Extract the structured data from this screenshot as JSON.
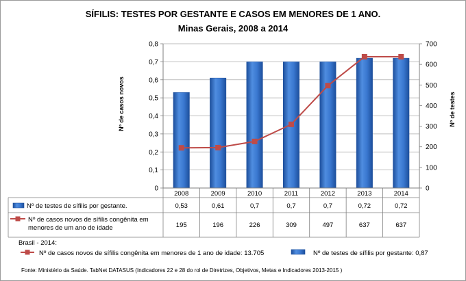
{
  "chart_data": {
    "type": "bar+line",
    "title": "SÍFILIS: TESTES POR GESTANTE E CASOS EM MENORES DE 1 ANO.",
    "subtitle": "Minas Gerais, 2008 a 2014",
    "categories": [
      "2008",
      "2009",
      "2010",
      "2011",
      "2012",
      "2013",
      "2014"
    ],
    "left_axis": {
      "label": "Nº de casos  novos",
      "ylim": [
        0,
        0.8
      ],
      "ticks": [
        "0",
        "0,1",
        "0,2",
        "0,3",
        "0,4",
        "0,5",
        "0,6",
        "0,7",
        "0,8"
      ]
    },
    "right_axis": {
      "label": "Nº de testes",
      "ylim": [
        0,
        700
      ],
      "ticks": [
        "0",
        "100",
        "200",
        "300",
        "400",
        "500",
        "600",
        "700"
      ]
    },
    "series": [
      {
        "name": "Nº de testes de sífilis por gestante.",
        "type": "bar",
        "axis": "left",
        "values": [
          0.53,
          0.61,
          0.7,
          0.7,
          0.7,
          0.72,
          0.72
        ],
        "labels": [
          "0,53",
          "0,61",
          "0,7",
          "0,7",
          "0,7",
          "0,72",
          "0,72"
        ],
        "color": "#2e6fcb"
      },
      {
        "name_line1": "Nº de casos novos de sífilis congênita em",
        "name_line2": "menores de um ano de idade",
        "type": "line",
        "axis": "right",
        "values": [
          195,
          196,
          226,
          309,
          497,
          637,
          637
        ],
        "labels": [
          "195",
          "196",
          "226",
          "309",
          "497",
          "637",
          "637"
        ],
        "color": "#be4b48"
      }
    ],
    "grid": true,
    "legend": "data-table",
    "brasil": {
      "title": "Brasil - 2014:",
      "line_text": "Nº de casos novos de sífilis congênita em menores de 1 ano de idade: 13.705",
      "bar_text": "Nº de testes de sífilis por gestante: 0,87"
    },
    "source": "Fonte: Ministério da Saúde. TabNet DATASUS (Indicadores 22 e 28 do rol de Diretrizes, Objetivos, Metas e Indicadores 2013-2015 )"
  }
}
